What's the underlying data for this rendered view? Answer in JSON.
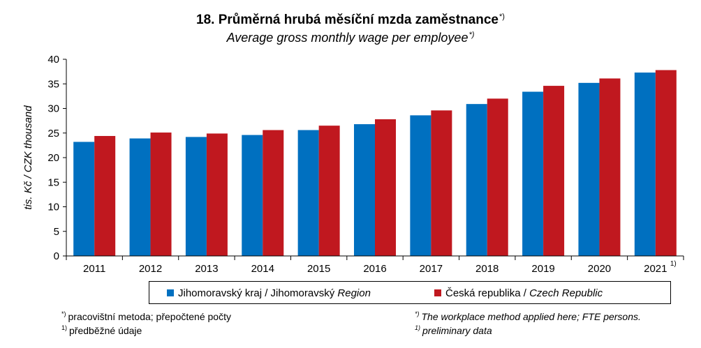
{
  "title": {
    "cz": "18. Průměrná hrubá měsíční mzda zaměstnance",
    "cz_mark": "*)",
    "en": "Average gross monthly wage per employee",
    "en_mark": "*)"
  },
  "colors": {
    "series1": "#0070C0",
    "series2": "#C0181F"
  },
  "legend": {
    "item1_main": "Jihomoravský kraj",
    "item1_sep": " / Jihomoravský ",
    "item1_it": "Region",
    "item2_main": "Česká republika",
    "item2_sep": " / ",
    "item2_it": "Czech Republic"
  },
  "footnotes": {
    "left1_mark": "*)",
    "left1_text": "pracovištní metoda; přepočtené počty",
    "left2_mark": "1)",
    "left2_text": "předběžné údaje",
    "right1_mark": "*)",
    "right1_text": "The workplace method applied here; FTE persons.",
    "right2_mark": "1)",
    "right2_text": "preliminary data"
  },
  "chart_data": {
    "type": "bar",
    "categories": [
      "2011",
      "2012",
      "2013",
      "2014",
      "2015",
      "2016",
      "2017",
      "2018",
      "2019",
      "2020",
      "2021"
    ],
    "category_marks": [
      "",
      "",
      "",
      "",
      "",
      "",
      "",
      "",
      "",
      "",
      "1)"
    ],
    "series": [
      {
        "name": "Jihomoravský kraj / Jihomoravský Region",
        "values": [
          23.2,
          23.9,
          24.2,
          24.6,
          25.6,
          26.8,
          28.6,
          30.9,
          33.4,
          35.2,
          37.3
        ]
      },
      {
        "name": "Česká republika / Czech Republic",
        "values": [
          24.4,
          25.1,
          24.9,
          25.6,
          26.5,
          27.8,
          29.6,
          32.0,
          34.6,
          36.1,
          37.8
        ]
      }
    ],
    "ylabel": "tis. Kč / CZK thousand",
    "ylim": [
      0,
      40
    ],
    "yticks": [
      0,
      5,
      10,
      15,
      20,
      25,
      30,
      35,
      40
    ],
    "grid": false,
    "legend_position": "bottom"
  }
}
